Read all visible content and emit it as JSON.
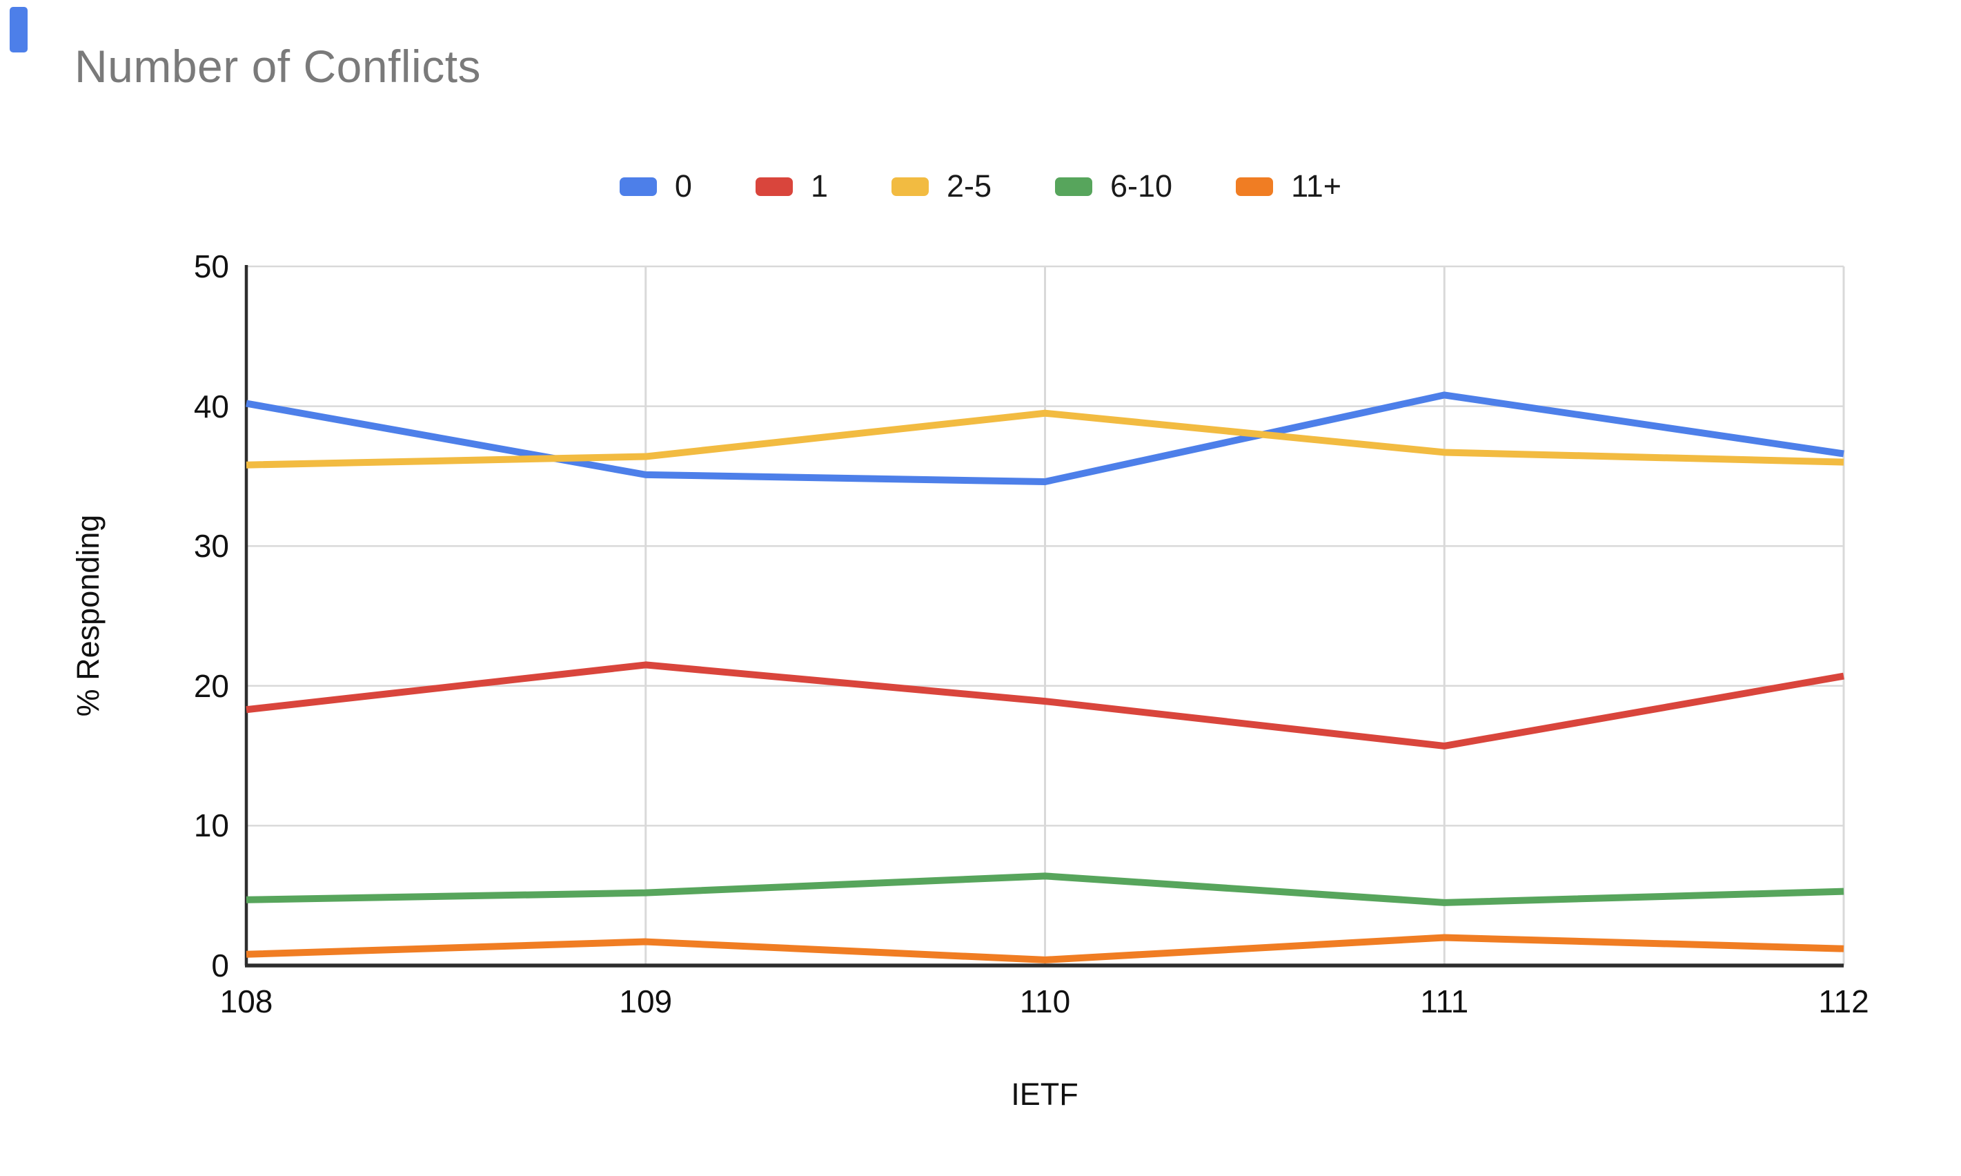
{
  "chart_data": {
    "type": "line",
    "title": "Number of Conflicts",
    "xlabel": "IETF",
    "ylabel": "% Responding",
    "categories": [
      108,
      109,
      110,
      111,
      112
    ],
    "y_ticks": [
      0,
      10,
      20,
      30,
      40,
      50
    ],
    "ylim": [
      0,
      50
    ],
    "grid": true,
    "legend_position": "top",
    "colors": {
      "axis": "#2d2d2d",
      "gridline": "#d9d9d9",
      "title_text": "#7a7a7a",
      "tick_text": "#111111"
    },
    "series": [
      {
        "name": "0",
        "color": "#4d7fe9",
        "values": [
          40.2,
          35.1,
          34.6,
          40.8,
          36.6
        ]
      },
      {
        "name": "1",
        "color": "#d9453c",
        "values": [
          18.3,
          21.5,
          18.9,
          15.7,
          20.7
        ]
      },
      {
        "name": "2-5",
        "color": "#f2bb41",
        "values": [
          35.8,
          36.4,
          39.5,
          36.7,
          36.0
        ]
      },
      {
        "name": "6-10",
        "color": "#57a55c",
        "values": [
          4.7,
          5.2,
          6.4,
          4.5,
          5.3
        ]
      },
      {
        "name": "11+",
        "color": "#f07d23",
        "values": [
          0.8,
          1.7,
          0.4,
          2.0,
          1.2
        ]
      }
    ]
  }
}
